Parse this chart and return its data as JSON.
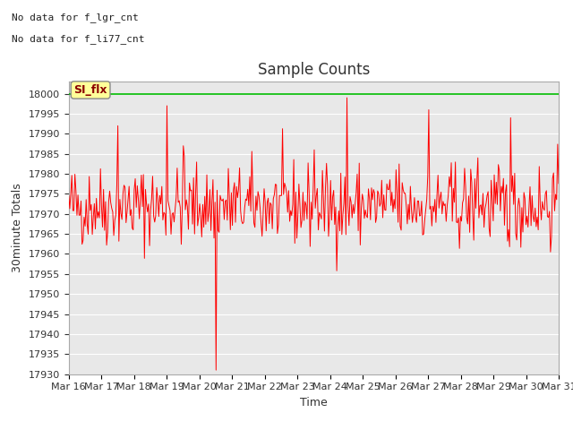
{
  "title": "Sample Counts",
  "ylabel": "30minute Totals",
  "xlabel": "Time",
  "ylim": [
    17930,
    18003
  ],
  "yticks": [
    17930,
    17935,
    17940,
    17945,
    17950,
    17955,
    17960,
    17965,
    17970,
    17975,
    17980,
    17985,
    17990,
    17995,
    18000
  ],
  "xtick_labels": [
    "Mar 16",
    "Mar 17",
    "Mar 18",
    "Mar 19",
    "Mar 20",
    "Mar 21",
    "Mar 22",
    "Mar 23",
    "Mar 24",
    "Mar 25",
    "Mar 26",
    "Mar 27",
    "Mar 28",
    "Mar 29",
    "Mar 30",
    "Mar 31"
  ],
  "wmp_color": "#ff0000",
  "li75_color": "#00bb00",
  "li75_value": 18000,
  "annotation_line1": "No data for f_lgr_cnt",
  "annotation_line2": "No data for f_li77_cnt",
  "si_flx_label": "SI_flx",
  "bg_color": "#e8e8e8",
  "fig_bg_color": "#ffffff",
  "title_fontsize": 12,
  "axis_label_fontsize": 9,
  "tick_fontsize": 8,
  "legend_fontsize": 9,
  "annot_fontsize": 8,
  "num_points": 480,
  "seed": 42,
  "base_value": 17972,
  "noise_std": 5,
  "dip_index": 144,
  "dip_value": 17931,
  "spike_indices": [
    48,
    96,
    112,
    240,
    272,
    320,
    352,
    400,
    432
  ],
  "spike_values": [
    17992,
    17997,
    17987,
    17986,
    17999,
    17981,
    17996,
    17984,
    17994
  ]
}
